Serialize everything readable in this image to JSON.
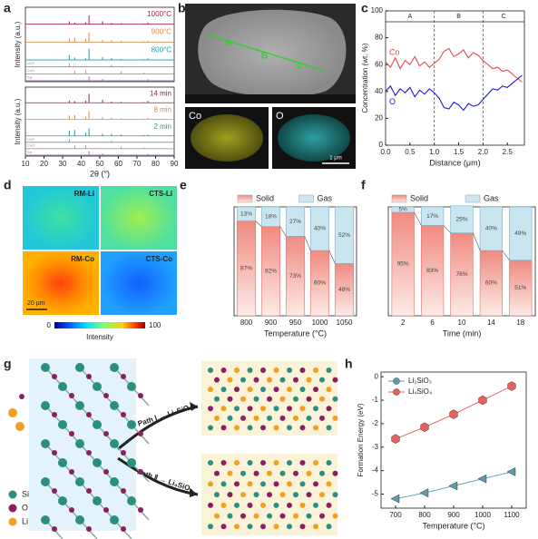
{
  "panel_labels": [
    "a",
    "b",
    "c",
    "d",
    "e",
    "f",
    "g",
    "h"
  ],
  "chart_data": [
    {
      "type": "xrd",
      "ylabel": "Intensity (a.u.)",
      "xlim": [
        10,
        90
      ],
      "x": [
        33.6,
        36.5,
        42.4,
        44.2,
        51.5,
        56.3,
        61.5,
        73.7,
        75.9
      ],
      "series": [
        {
          "name": "1000°C",
          "color": "#9c1f4a",
          "values": [
            18,
            10,
            12,
            55,
            18,
            8,
            6,
            4,
            10
          ]
        },
        {
          "name": "900°C",
          "color": "#e0894a",
          "values": [
            22,
            30,
            20,
            60,
            15,
            10,
            8,
            5,
            8
          ]
        },
        {
          "name": "800°C",
          "color": "#1f9a9a",
          "values": [
            30,
            15,
            10,
            70,
            18,
            12,
            6,
            4,
            10
          ]
        }
      ],
      "references": [
        {
          "name": "Li₂O",
          "color": "#888888",
          "values": [
            60,
            0,
            0,
            0,
            0,
            30,
            0,
            0,
            0
          ]
        },
        {
          "name": "CoO",
          "color": "#888888",
          "values": [
            0,
            50,
            60,
            0,
            0,
            0,
            40,
            20,
            0
          ]
        },
        {
          "name": "Co",
          "color": "#8a4fa8",
          "values": [
            0,
            0,
            0,
            70,
            30,
            0,
            0,
            0,
            25
          ]
        }
      ]
    },
    {
      "type": "xrd",
      "ylabel": "Intensity (a.u.)",
      "xlabel": "2θ (°)",
      "xlim": [
        10,
        90
      ],
      "xticks": [
        10,
        20,
        30,
        40,
        50,
        60,
        70,
        80,
        90
      ],
      "x": [
        33.6,
        36.5,
        42.4,
        44.2,
        51.5,
        56.3,
        61.5,
        73.7,
        75.9
      ],
      "series": [
        {
          "name": "14 min",
          "color": "#9c1f4a",
          "values": [
            15,
            12,
            14,
            60,
            20,
            8,
            6,
            4,
            12
          ]
        },
        {
          "name": "8 min",
          "color": "#e0894a",
          "values": [
            25,
            28,
            18,
            55,
            16,
            10,
            7,
            5,
            9
          ]
        },
        {
          "name": "2 min",
          "color": "#1f9a9a",
          "values": [
            35,
            40,
            22,
            50,
            14,
            14,
            9,
            5,
            8
          ]
        }
      ],
      "references": [
        {
          "name": "Li₂O",
          "color": "#888888",
          "values": [
            60,
            0,
            0,
            0,
            0,
            30,
            0,
            0,
            0
          ]
        },
        {
          "name": "CoO",
          "color": "#888888",
          "values": [
            0,
            50,
            60,
            0,
            0,
            0,
            40,
            20,
            0
          ]
        },
        {
          "name": "Co",
          "color": "#8a4fa8",
          "values": [
            0,
            0,
            0,
            70,
            30,
            0,
            0,
            0,
            25
          ]
        }
      ]
    },
    {
      "type": "line",
      "xlabel": "Distance (μm)",
      "ylabel": "Concentration (wt. %)",
      "xlim": [
        0,
        2.85
      ],
      "xticks": [
        {
          "value": 0,
          "label": "0.0"
        },
        0.5,
        {
          "value": 1,
          "label": "1.0"
        },
        1.5,
        {
          "value": 2,
          "label": "2.0"
        },
        2.5
      ],
      "ylim": [
        0,
        100
      ],
      "yticks": [
        0,
        20,
        40,
        60,
        80,
        100
      ],
      "legend": "inline",
      "regions": [
        {
          "label": "A",
          "start": 0,
          "end": 1
        },
        {
          "label": "B",
          "start": 1,
          "end": 2
        },
        {
          "label": "C",
          "start": 2,
          "end": 2.85
        }
      ],
      "x": [
        0,
        0.1,
        0.2,
        0.3,
        0.4,
        0.5,
        0.6,
        0.7,
        0.8,
        0.9,
        1,
        1.1,
        1.2,
        1.3,
        1.4,
        1.5,
        1.6,
        1.7,
        1.8,
        1.9,
        2,
        2.1,
        2.2,
        2.3,
        2.4,
        2.5,
        2.6,
        2.7,
        2.8
      ],
      "series": [
        {
          "name": "Co",
          "color": "#e84a4a",
          "values": [
            62,
            58,
            65,
            57,
            63,
            60,
            66,
            59,
            62,
            58,
            61,
            64,
            70,
            72,
            66,
            68,
            71,
            65,
            69,
            67,
            63,
            60,
            57,
            58,
            55,
            56,
            53,
            50,
            47
          ]
        },
        {
          "name": "O",
          "color": "#1a1ad0",
          "values": [
            40,
            44,
            37,
            42,
            39,
            43,
            36,
            41,
            38,
            42,
            39,
            35,
            28,
            27,
            32,
            30,
            26,
            31,
            29,
            30,
            34,
            38,
            42,
            41,
            44,
            43,
            46,
            49,
            52
          ]
        }
      ]
    },
    {
      "type": "stacked_bar",
      "xlabel": "Temperature (°C)",
      "ylim": [
        0,
        100
      ],
      "categories": [
        "800",
        "900",
        "950",
        "1000",
        "1050"
      ],
      "series": [
        {
          "name": "Solid",
          "color": "#f08a80",
          "values": [
            87,
            82,
            73,
            60,
            48
          ],
          "value_labels": [
            "87%",
            "82%",
            "73%",
            "60%",
            "48%"
          ]
        },
        {
          "name": "Gas",
          "color": "#c9e6f0",
          "values": [
            13,
            18,
            27,
            40,
            52
          ],
          "value_labels": [
            "13%",
            "18%",
            "27%",
            "40%",
            "52%"
          ]
        }
      ]
    },
    {
      "type": "stacked_bar",
      "xlabel": "Time (min)",
      "ylim": [
        0,
        100
      ],
      "categories": [
        "2",
        "6",
        "10",
        "14",
        "18"
      ],
      "series": [
        {
          "name": "Solid",
          "color": "#f08a80",
          "values": [
            95,
            83,
            76,
            60,
            51
          ],
          "value_labels": [
            "95%",
            "83%",
            "76%",
            "60%",
            "51%"
          ]
        },
        {
          "name": "Gas",
          "color": "#c9e6f0",
          "values": [
            5,
            17,
            25,
            40,
            49
          ],
          "value_labels": [
            "5%",
            "17%",
            "25%",
            "40%",
            "49%"
          ]
        }
      ]
    },
    {
      "type": "line",
      "xlabel": "Temperature (°C)",
      "ylabel": "Formation Energy (eV)",
      "xlim": [
        650,
        1150
      ],
      "xticks": [
        700,
        800,
        900,
        1000,
        1100
      ],
      "ylim": [
        -5.6,
        0.2
      ],
      "yticks": [
        -5,
        -4,
        -3,
        -2,
        -1,
        0
      ],
      "legend": "top-left",
      "x": [
        700,
        800,
        900,
        1000,
        1100
      ],
      "series": [
        {
          "name": "Li₂SiO₃",
          "color": "#5a9db0",
          "marker": "triangle",
          "values": [
            -5.2,
            -4.95,
            -4.65,
            -4.35,
            -4.05
          ]
        },
        {
          "name": "Li₄SiO₄",
          "color": "#e8605a",
          "marker": "hexagon",
          "values": [
            -2.65,
            -2.15,
            -1.6,
            -1.0,
            -0.4
          ]
        }
      ]
    }
  ],
  "sem": {
    "regions": [
      "A",
      "B",
      "C"
    ],
    "maps": [
      "Co",
      "O"
    ],
    "scale": "1 μm"
  },
  "maps": {
    "labels": [
      "RM-Li",
      "CTS-Li",
      "RM-Co",
      "CTS-Co"
    ],
    "scale": "20 μm",
    "colorbar_min": "0",
    "colorbar_max": "100",
    "colorbar_label": "Intensity"
  },
  "diagram": {
    "legend": [
      "Si",
      "O",
      "Li"
    ],
    "paths": [
      "Path Ⅰ → Li₂SiO₃",
      "Path Ⅱ → Li₄SiO₄"
    ]
  }
}
